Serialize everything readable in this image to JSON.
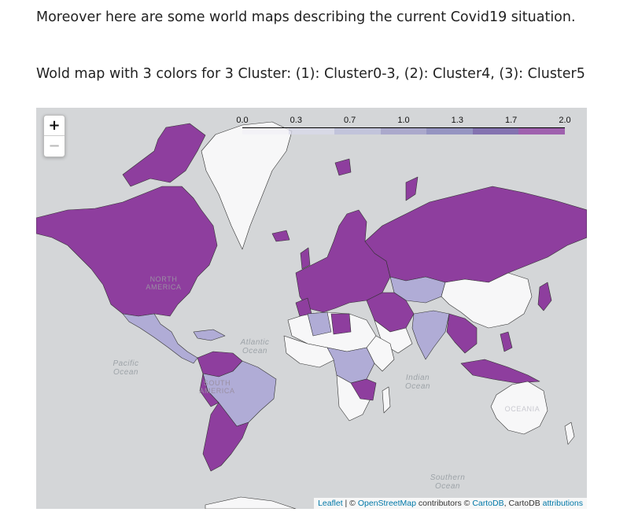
{
  "headings": {
    "intro": "Moreover here are some world maps describing the current Covid19 situation.",
    "map_title": "Wold map with 3 colors for 3 Cluster: (1): Cluster0-3, (2): Cluster4, (3): Cluster5"
  },
  "map": {
    "zoom_in_label": "+",
    "zoom_out_label": "−",
    "legend": {
      "ticks": [
        "0.0",
        "0.3",
        "0.7",
        "1.0",
        "1.3",
        "1.7",
        "2.0"
      ],
      "range": [
        0.0,
        2.0
      ],
      "colors": [
        "#f2f0f7",
        "#dadaeb",
        "#bcbddc",
        "#9e9ac8",
        "#807dba",
        "#6a51a3",
        "#8e3aa0"
      ]
    },
    "cluster_colors": {
      "cluster_0_3": "#f7f7f8",
      "cluster_4": "#b0acd6",
      "cluster_5": "#8e3e9e"
    },
    "ocean_labels": {
      "atlantic": "Atlantic Ocean",
      "pacific": "Pacific Ocean",
      "indian": "Indian Ocean",
      "southern": "Southern Ocean"
    },
    "continent_labels": {
      "north_america": "NORTH AMERICA",
      "south_america": "SOUTH AMERICA",
      "oceania": "OCEANIA"
    },
    "attribution": {
      "leaflet": "Leaflet",
      "sep": " | © ",
      "osm": "OpenStreetMap",
      "contrib": " contributors © ",
      "cartodb": "CartoDB",
      "comma": ", CartoDB ",
      "attributions": "attributions"
    }
  }
}
